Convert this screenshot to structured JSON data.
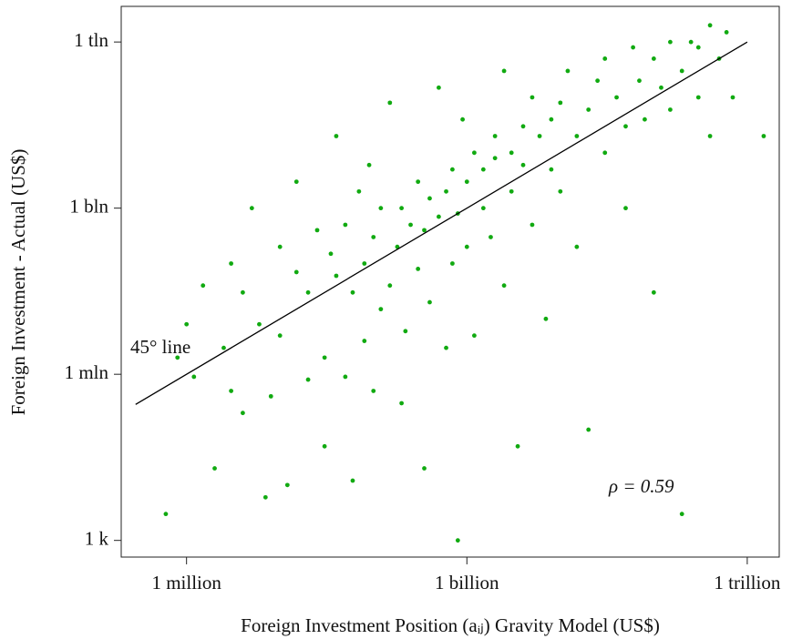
{
  "chart_data": {
    "type": "scatter",
    "x_label": "Foreign Investment Position (aᵢⱼ) Gravity Model (US$)",
    "y_label": "Foreign Investment - Actual (US$)",
    "annotation": "ρ = 0.59",
    "xscale": "log",
    "yscale": "log",
    "xlim": [
      200000.0,
      2200000000000.0
    ],
    "ylim": [
      500.0,
      4400000000000.0
    ],
    "xticks": [
      {
        "value": 1000000.0,
        "label": "1 million"
      },
      {
        "value": 1000000000.0,
        "label": "1 billion"
      },
      {
        "value": 1000000000000.0,
        "label": "1 trillion"
      }
    ],
    "yticks": [
      {
        "value": 1000.0,
        "label": "1 k"
      },
      {
        "value": 1000000.0,
        "label": "1 mln"
      },
      {
        "value": 1000000000.0,
        "label": "1 bln"
      },
      {
        "value": 1000000000000.0,
        "label": "1 tln"
      }
    ],
    "color": "#11aa11",
    "reference_line": {
      "label": "45° line",
      "x": [
        285000.0,
        1000000000000.0
      ],
      "y": [
        285000.0,
        1000000000000.0
      ],
      "color": "#000000"
    },
    "x": [
      600000.0,
      800000.0,
      1000000.0,
      1200000.0,
      1500000.0,
      2000000.0,
      2500000.0,
      3000000.0,
      3000000.0,
      4000000.0,
      4000000.0,
      5000000.0,
      6000000.0,
      7000000.0,
      8000000.0,
      10000000.0,
      10000000.0,
      12000000.0,
      15000000.0,
      15000000.0,
      20000000.0,
      20000000.0,
      25000000.0,
      30000000.0,
      30000000.0,
      35000000.0,
      40000000.0,
      40000000.0,
      50000000.0,
      50000000.0,
      60000000.0,
      60000000.0,
      70000000.0,
      80000000.0,
      80000000.0,
      90000000.0,
      100000000.0,
      100000000.0,
      120000000.0,
      120000000.0,
      150000000.0,
      150000000.0,
      180000000.0,
      200000000.0,
      200000000.0,
      220000000.0,
      250000000.0,
      300000000.0,
      300000000.0,
      350000000.0,
      350000000.0,
      400000000.0,
      400000000.0,
      500000000.0,
      500000000.0,
      600000000.0,
      600000000.0,
      700000000.0,
      700000000.0,
      800000000.0,
      800000000.0,
      900000000.0,
      1000000000.0,
      1000000000.0,
      1200000000.0,
      1200000000.0,
      1500000000.0,
      1500000000.0,
      1800000000.0,
      2000000000.0,
      2000000000.0,
      2500000000.0,
      2500000000.0,
      3000000000.0,
      3000000000.0,
      3500000000.0,
      4000000000.0,
      4000000000.0,
      5000000000.0,
      5000000000.0,
      6000000000.0,
      7000000000.0,
      8000000000.0,
      8000000000.0,
      10000000000.0,
      10000000000.0,
      12000000000.0,
      15000000000.0,
      15000000000.0,
      20000000000.0,
      20000000000.0,
      25000000000.0,
      30000000000.0,
      30000000000.0,
      40000000000.0,
      50000000000.0,
      50000000000.0,
      60000000000.0,
      70000000000.0,
      80000000000.0,
      100000000000.0,
      100000000000.0,
      120000000000.0,
      150000000000.0,
      150000000000.0,
      200000000000.0,
      200000000000.0,
      250000000000.0,
      300000000000.0,
      300000000000.0,
      400000000000.0,
      400000000000.0,
      500000000000.0,
      600000000000.0,
      700000000000.0,
      1500000000000.0
    ],
    "values": [
      3000.0,
      2000000.0,
      8000000.0,
      900000.0,
      40000000.0,
      20000.0,
      3000000.0,
      100000000.0,
      500000.0,
      200000.0,
      30000000.0,
      1000000000.0,
      8000000.0,
      6000.0,
      400000.0,
      200000000.0,
      5000000.0,
      10000.0,
      70000000.0,
      3000000000.0,
      800000.0,
      30000000.0,
      400000000.0,
      50000.0,
      2000000.0,
      150000000.0,
      20000000000.0,
      60000000.0,
      900000.0,
      500000000.0,
      12000.0,
      30000000.0,
      2000000000.0,
      4000000.0,
      100000000.0,
      6000000000.0,
      500000.0,
      300000000.0,
      15000000.0,
      1000000000.0,
      80000000000.0,
      40000000.0,
      200000000.0,
      300000.0,
      1000000000.0,
      6000000.0,
      500000000.0,
      3000000000.0,
      80000000.0,
      20000.0,
      400000000.0,
      1500000000.0,
      20000000.0,
      700000000.0,
      150000000000.0,
      3000000.0,
      2000000000.0,
      5000000000.0,
      100000000.0,
      1000.0,
      800000000.0,
      40000000000.0,
      3000000000.0,
      200000000.0,
      10000000000.0,
      5000000.0,
      5000000000.0,
      1000000000.0,
      300000000.0,
      20000000000.0,
      8000000000.0,
      300000000000.0,
      40000000.0,
      10000000000.0,
      2000000000.0,
      50000.0,
      30000000000.0,
      6000000000.0,
      500000000.0,
      100000000000.0,
      20000000000.0,
      10000000.0,
      40000000000.0,
      5000000000.0,
      80000000000.0,
      2000000000.0,
      300000000000.0,
      20000000000.0,
      200000000.0,
      60000000000.0,
      100000.0,
      200000000000.0,
      10000000000.0,
      500000000000.0,
      100000000000.0,
      30000000000.0,
      1000000000.0,
      800000000000.0,
      200000000000.0,
      40000000000.0,
      500000000000.0,
      30000000.0,
      150000000000.0,
      1000000000000.0,
      60000000000.0,
      300000000000.0,
      3000.0,
      1000000000000.0,
      800000000000.0,
      100000000000.0,
      2000000000000.0,
      20000000000.0,
      500000000000.0,
      1500000000000.0,
      100000000000.0,
      20000000000.0
    ]
  }
}
